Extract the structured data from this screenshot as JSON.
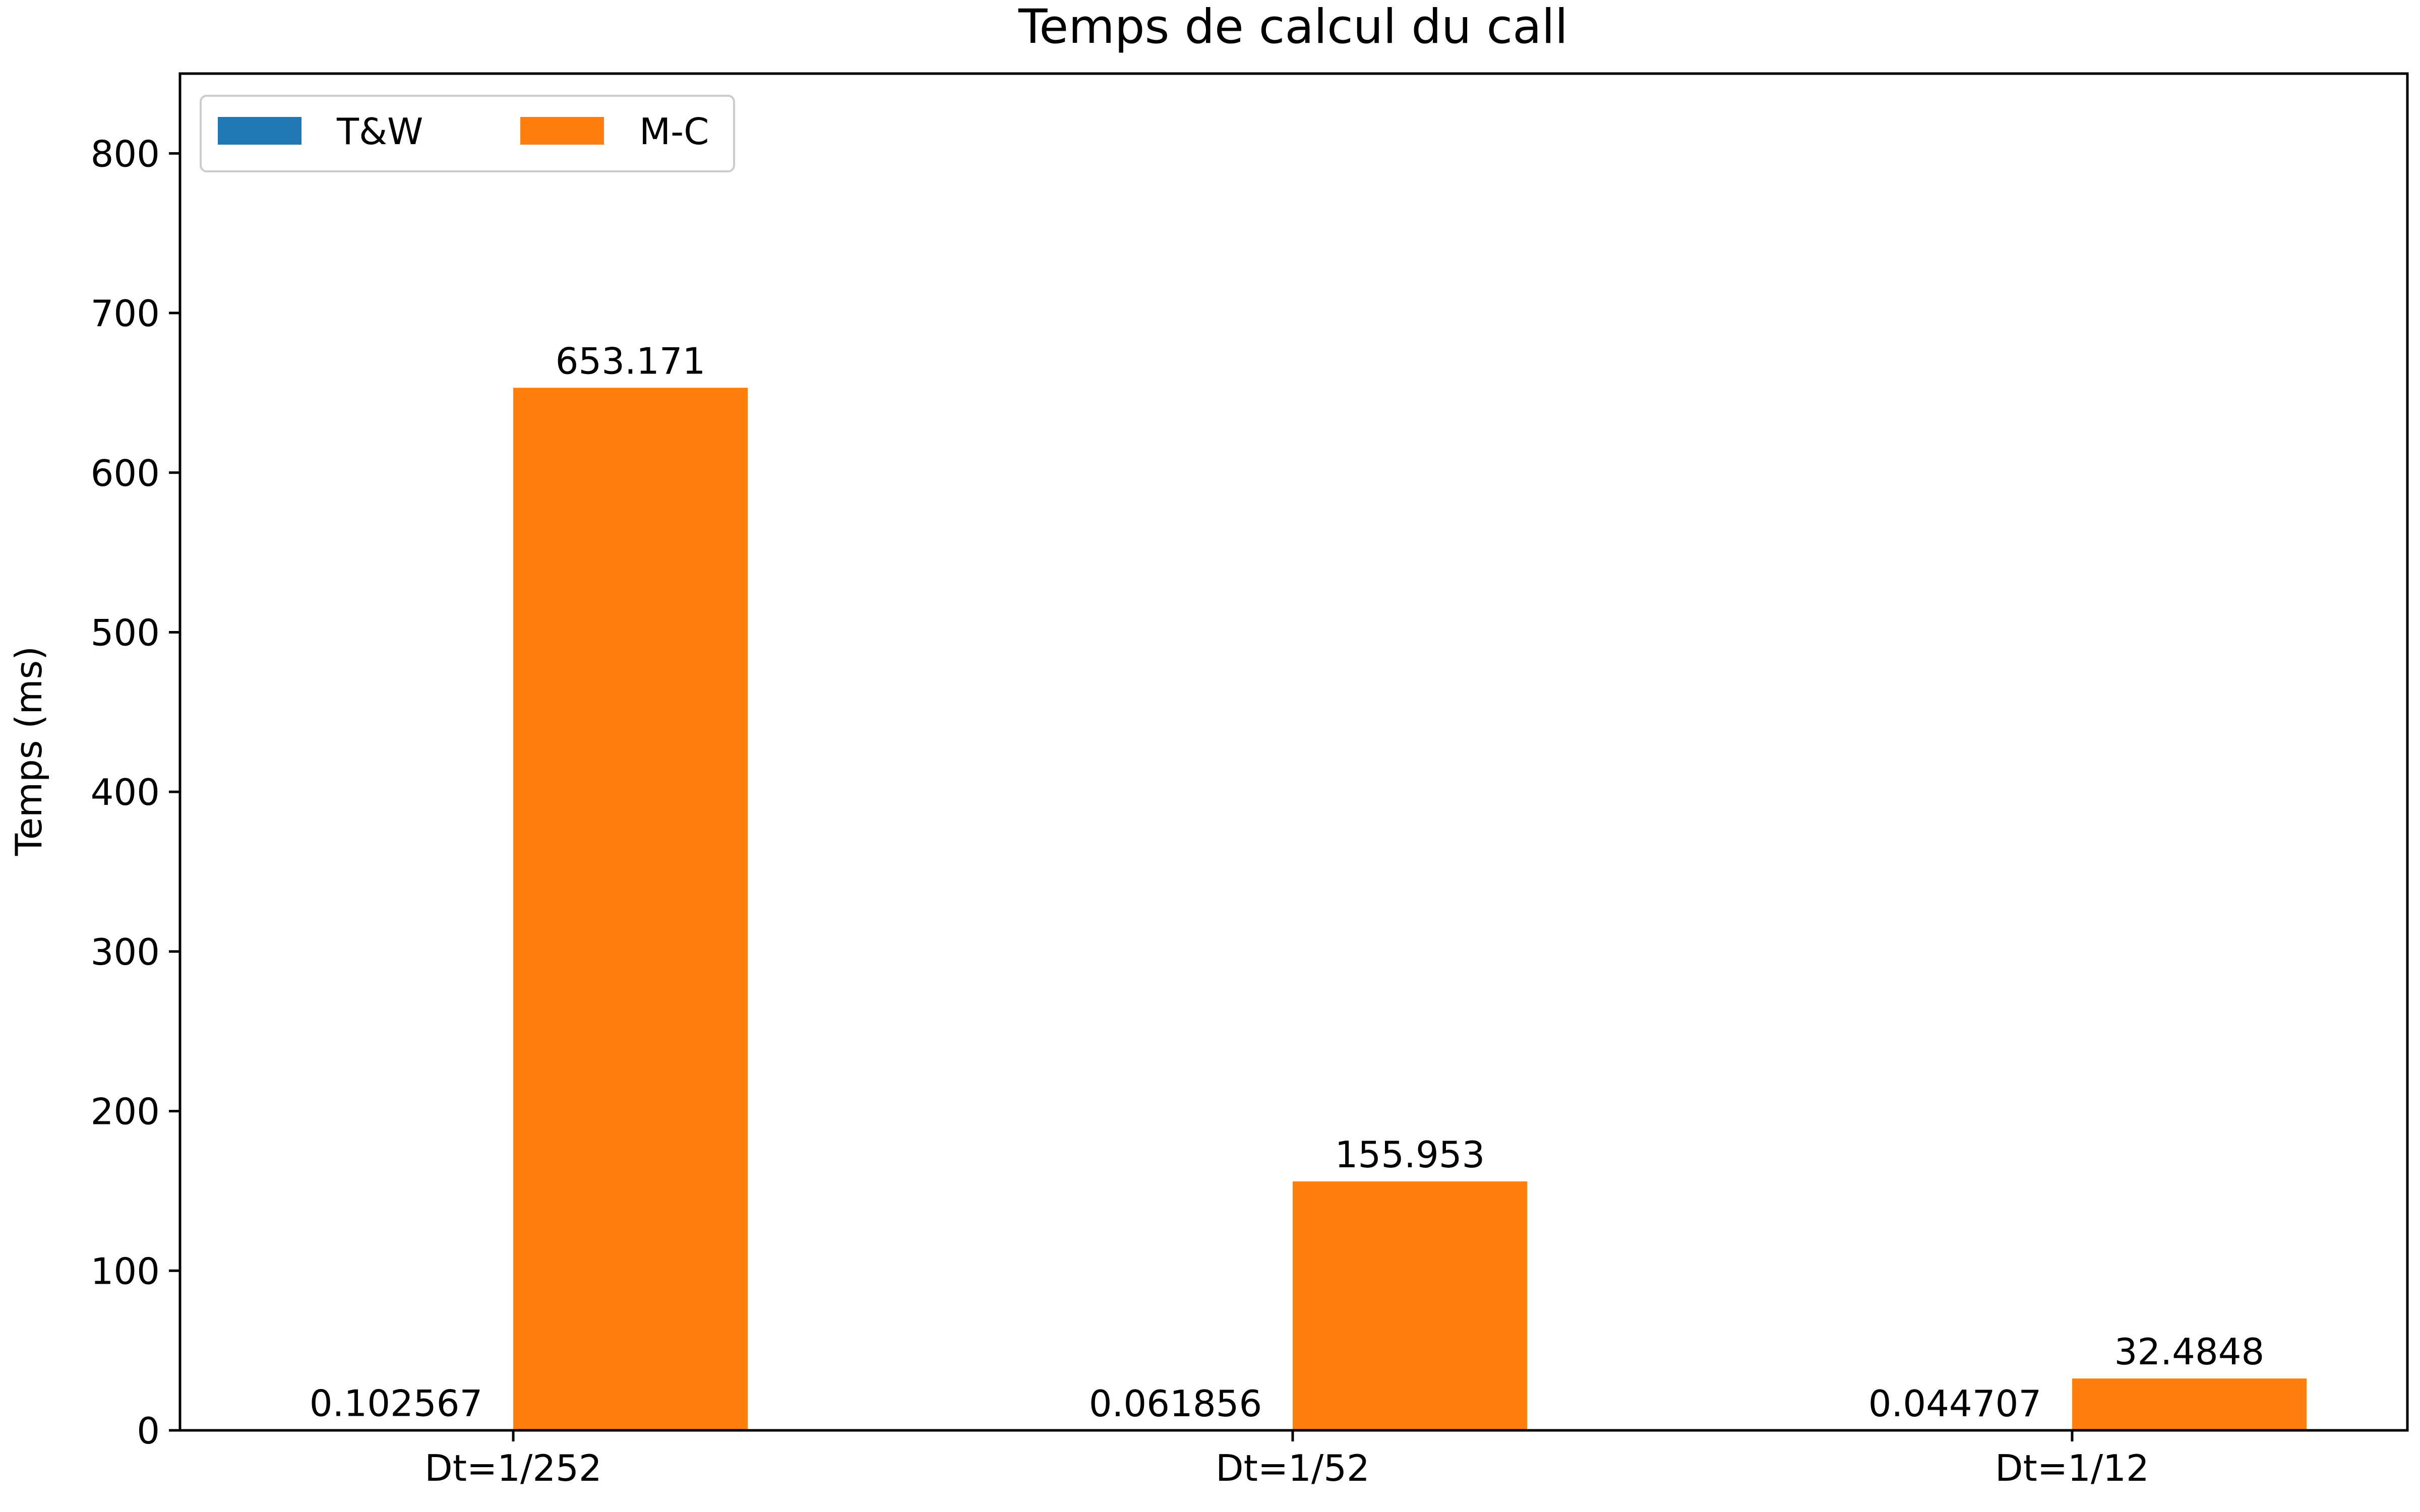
{
  "chart_data": {
    "type": "bar",
    "title": "Temps de calcul du call",
    "xlabel": "",
    "ylabel": "Temps (ms)",
    "categories": [
      "Dt=1/252",
      "Dt=1/52",
      "Dt=1/12"
    ],
    "series": [
      {
        "name": "T&W",
        "color": "#1f77b4",
        "values": [
          0.102567,
          0.061856,
          0.044707
        ],
        "labels": [
          "0.102567",
          "0.061856",
          "0.044707"
        ]
      },
      {
        "name": "M-C",
        "color": "#ff7f0e",
        "values": [
          653.171,
          155.953,
          32.4848
        ],
        "labels": [
          "653.171",
          "155.953",
          "32.4848"
        ]
      }
    ],
    "ylim": [
      0,
      850
    ],
    "yticks": [
      0,
      100,
      200,
      300,
      400,
      500,
      600,
      700,
      800
    ],
    "grid": false,
    "legend": {
      "placement": "top-left",
      "columns": 2
    }
  }
}
